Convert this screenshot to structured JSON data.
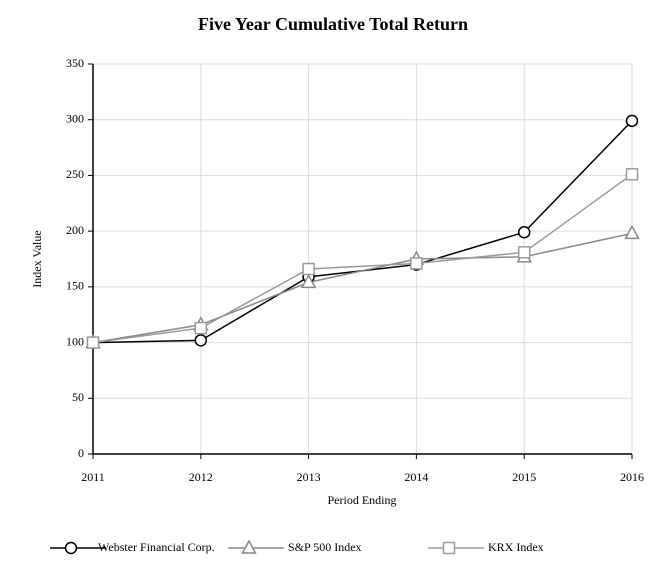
{
  "chart_data": {
    "type": "line",
    "title": "Five Year Cumulative Total Return",
    "x_label": "Period Ending",
    "y_label": "Index Value",
    "x": [
      2011,
      2012,
      2013,
      2014,
      2015,
      2016
    ],
    "xlim": [
      2011,
      2016
    ],
    "xticks": [
      2011,
      2012,
      2013,
      2014,
      2015,
      2016
    ],
    "ylim": [
      0,
      350
    ],
    "yticks": [
      0,
      50,
      100,
      150,
      200,
      250,
      300,
      350
    ],
    "grid": true,
    "legend": "bottom",
    "series": [
      {
        "name": "Webster Financial Corp.",
        "color": "#000000",
        "marker": "circle",
        "values": [
          100,
          102,
          159,
          170,
          199,
          299
        ]
      },
      {
        "name": "S&P 500 Index",
        "color": "#888888",
        "marker": "triangle",
        "values": [
          100,
          116,
          154,
          175,
          177,
          198
        ]
      },
      {
        "name": "KRX Index",
        "color": "#999999",
        "marker": "square",
        "values": [
          100,
          113,
          166,
          171,
          181,
          251
        ]
      }
    ]
  }
}
